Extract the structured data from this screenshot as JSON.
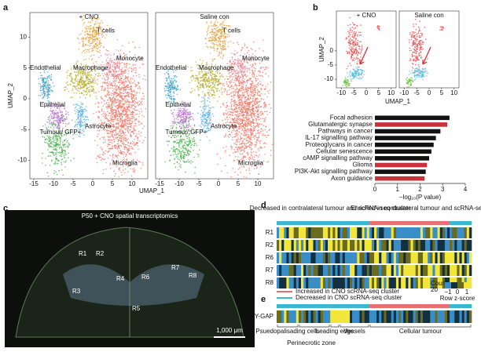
{
  "panels": {
    "a": {
      "label": "a",
      "conditions": [
        "+ CNO",
        "Saline con"
      ],
      "cell_types": [
        "T cells",
        "Monocyte",
        "Macrophage",
        "Endothelial",
        "Epithelial",
        "Tumour/ GFP+",
        "Astrocyte",
        "Microglia"
      ],
      "x_label": "UMAP_1",
      "y_label": "UMAP_2",
      "xlim": [
        -16,
        14
      ],
      "ylim": [
        -13,
        14
      ],
      "xticks": [
        -15,
        -10,
        -5,
        0,
        5,
        10
      ],
      "yticks": [
        -10,
        -5,
        0,
        5,
        10
      ]
    },
    "b": {
      "label": "b",
      "conditions": [
        "+ CNO",
        "Saline con"
      ],
      "x_label": "UMAP_1",
      "y_label": "UMAP_2",
      "xlim": [
        -12,
        12
      ],
      "ylim": [
        -13,
        14
      ],
      "xticks": [
        -10,
        -5,
        0,
        5,
        10
      ],
      "yticks": [
        -10,
        -5,
        0
      ]
    },
    "c": {
      "label": "c",
      "title": "P50 + CNO spatial transcriptomics",
      "regions": [
        "R1",
        "R2",
        "R3",
        "R4",
        "R5",
        "R6",
        "R7",
        "R8"
      ],
      "scale_bar": "1,000 μm"
    },
    "d": {
      "label": "d",
      "header_left": "Decreased in contralateral tumour and scRNA-seq cluster",
      "header_right": "Enriched in contralateral tumour and scRNA-seq cluster",
      "rows": [
        "R1",
        "R2",
        "R6",
        "R7",
        "R8"
      ],
      "legend": [
        "Increased in CNO scRNA-seq cluster",
        "Decreased in CNO scRNA-seq cluster"
      ],
      "count_label": "Count",
      "count_value": "20",
      "colorbar_ticks": [
        "−1",
        "0",
        "1"
      ],
      "colorbar_label": "Row z-score"
    },
    "e": {
      "label": "e",
      "row": "IVY-GAP",
      "zones": [
        "Psuedopalisading cells",
        "Perinecrotic zone",
        "Leading edge",
        "Vessels",
        "Cellular tumour"
      ]
    }
  },
  "chart_data": {
    "type": "bar",
    "categories": [
      "Focal adhesion",
      "Glutamatergic synapse",
      "Pathways in cancer",
      "IL-17 signalling pathway",
      "Proteoglycans in cancer",
      "Cellular senescence",
      "cAMP signalling pathway",
      "Glioma",
      "PI3K-Akt signalling pathway",
      "Axon guidance"
    ],
    "values": [
      3.3,
      3.2,
      2.9,
      2.7,
      2.6,
      2.5,
      2.4,
      2.3,
      2.25,
      2.2
    ],
    "colors": [
      "#111111",
      "#c8323c",
      "#111111",
      "#111111",
      "#111111",
      "#111111",
      "#111111",
      "#c8323c",
      "#111111",
      "#c8323c"
    ],
    "xlabel": "−log₁₀(P value)",
    "xlim": [
      0,
      4
    ],
    "xticks": [
      0,
      1,
      2,
      3,
      4
    ]
  }
}
